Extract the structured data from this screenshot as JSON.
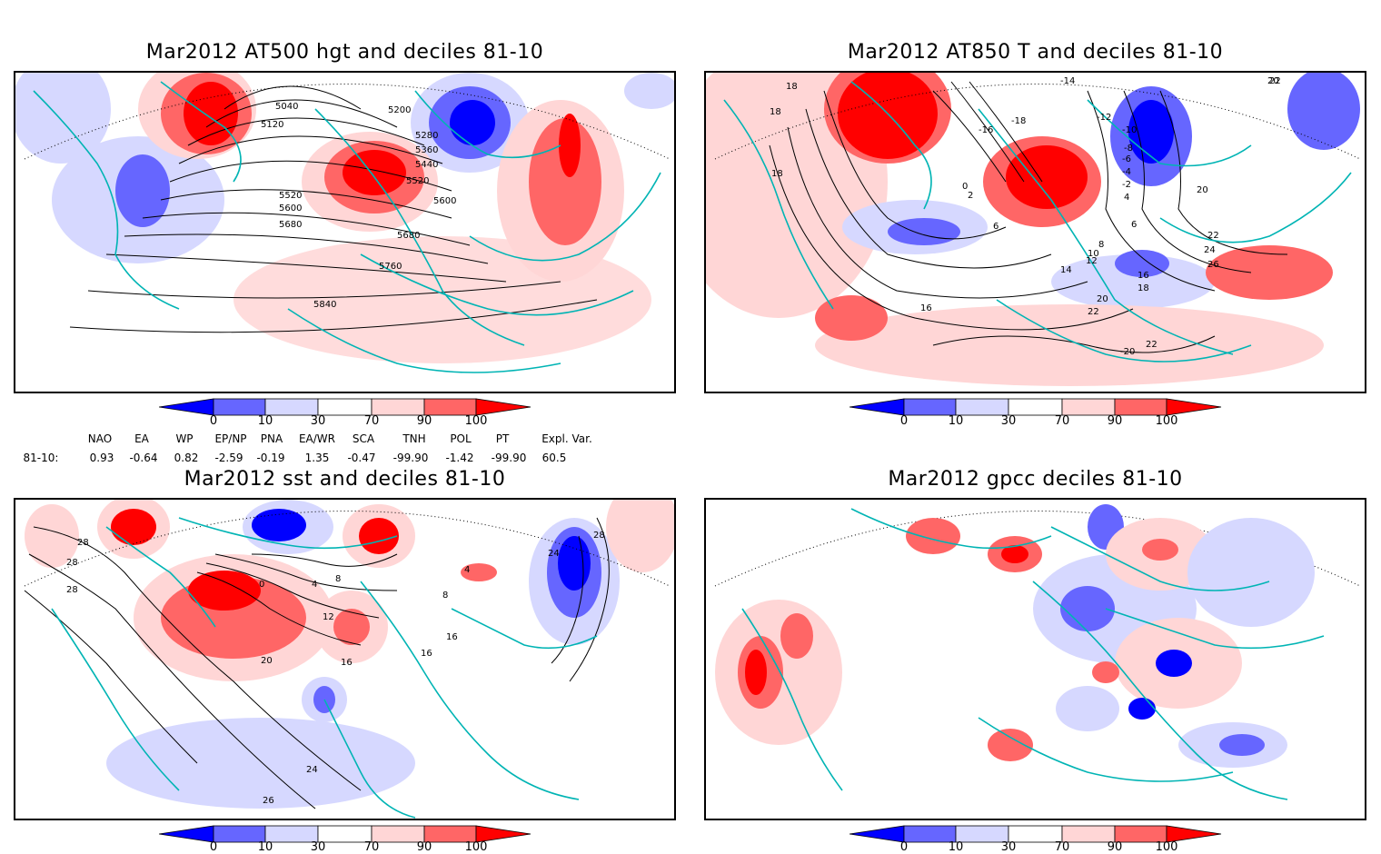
{
  "panels": [
    {
      "id": "p1",
      "title": "Mar2012 AT500 hgt and deciles 81-10",
      "contour_labels": [
        "5040",
        "5120",
        "5200",
        "5280",
        "5360",
        "5440",
        "5520",
        "5520",
        "5600",
        "5600",
        "5680",
        "5680",
        "5760",
        "5840"
      ]
    },
    {
      "id": "p2",
      "title": "Mar2012 AT850 T and deciles 81-10",
      "contour_labels": [
        "18",
        "18",
        "18",
        "-14",
        "-16",
        "-18",
        "-12",
        "-10",
        "-8",
        "-6",
        "-4",
        "-2",
        "0",
        "2",
        "4",
        "6",
        "6",
        "8",
        "10",
        "12",
        "14",
        "16",
        "16",
        "18",
        "20",
        "20",
        "20",
        "22",
        "22",
        "22",
        "24",
        "26",
        "-20",
        "22"
      ]
    },
    {
      "id": "p3",
      "title": "Mar2012 sst and deciles 81-10",
      "contour_labels": [
        "28",
        "28",
        "28",
        "0",
        "4",
        "8",
        "12",
        "16",
        "16",
        "20",
        "24",
        "26",
        "24",
        "28",
        "16",
        "8",
        "4"
      ]
    },
    {
      "id": "p4",
      "title": "Mar2012 gpcc deciles 81-10",
      "contour_labels": []
    }
  ],
  "colorbar": {
    "ticks": [
      "0",
      "10",
      "30",
      "70",
      "90",
      "100"
    ],
    "colors": [
      "#0000ff",
      "#6666ff",
      "#d6d8ff",
      "#ffffff",
      "#ffd6d6",
      "#ff6666",
      "#ff0000"
    ]
  },
  "indices": {
    "headers": [
      "NAO",
      "EA",
      "WP",
      "EP/NP",
      "PNA",
      "EA/WR",
      "SCA",
      "TNH",
      "POL",
      "PT",
      "Expl. Var."
    ],
    "row_label": "81-10:",
    "values": [
      "0.93",
      "-0.64",
      "0.82",
      "-2.59",
      "-0.19",
      "1.35",
      "-0.47",
      "-99.90",
      "-1.42",
      "-99.90",
      "60.5"
    ]
  }
}
